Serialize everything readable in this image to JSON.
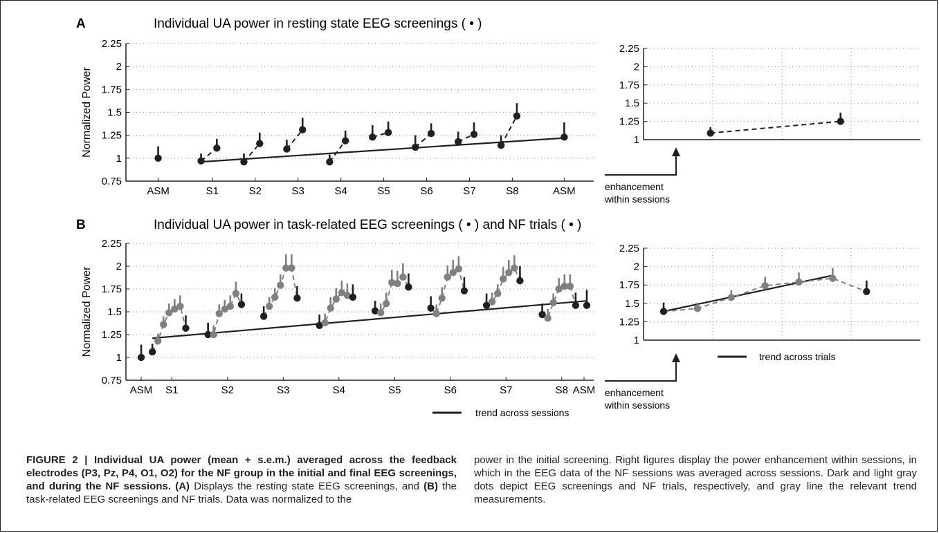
{
  "figure": {
    "panel_a_letter": "A",
    "panel_a_title": "Individual UA power in resting state EEG screenings ( • )",
    "panel_b_letter": "B",
    "panel_b_title": "Individual UA power in task-related EEG screenings ( • ) and NF trials ( • )",
    "arrow_note_line1": "enhancement",
    "arrow_note_line2": "within sessions",
    "legend_sessions": "trend across sessions",
    "legend_trials": "trend across trials"
  },
  "colors": {
    "dark": "#231f20",
    "light": "#808080",
    "grid": "#888888"
  },
  "chart_data": [
    {
      "id": "A-main",
      "type": "scatter",
      "title": "Individual UA power in resting state EEG screenings ( • )",
      "ylabel": "Normalized Power",
      "ylim": [
        0.75,
        2.25
      ],
      "yticks": [
        "0.75",
        "1",
        "1.25",
        "1.5",
        "1.75",
        "2",
        "2.25"
      ],
      "xlim": [
        0,
        20
      ],
      "xticks": [
        {
          "x": 1,
          "label": "ASM"
        },
        {
          "x": 3.4,
          "label": "S1"
        },
        {
          "x": 5.3,
          "label": "S2"
        },
        {
          "x": 7.2,
          "label": "S3"
        },
        {
          "x": 9.1,
          "label": "S4"
        },
        {
          "x": 11,
          "label": "S5"
        },
        {
          "x": 12.9,
          "label": "S6"
        },
        {
          "x": 14.8,
          "label": "S7"
        },
        {
          "x": 16.7,
          "label": "S8"
        },
        {
          "x": 19,
          "label": "ASM"
        }
      ],
      "grid": "horizontal dotted",
      "points": [
        {
          "x": 1,
          "y": 1.0,
          "err": 0.13,
          "group": "dark"
        },
        {
          "x": 2.9,
          "y": 0.97,
          "err": 0.08,
          "group": "dark"
        },
        {
          "x": 3.6,
          "y": 1.11,
          "err": 0.1,
          "group": "dark"
        },
        {
          "x": 4.8,
          "y": 0.96,
          "err": 0.09,
          "group": "dark"
        },
        {
          "x": 5.5,
          "y": 1.16,
          "err": 0.12,
          "group": "dark"
        },
        {
          "x": 6.7,
          "y": 1.1,
          "err": 0.1,
          "group": "dark"
        },
        {
          "x": 7.4,
          "y": 1.31,
          "err": 0.13,
          "group": "dark"
        },
        {
          "x": 8.6,
          "y": 0.96,
          "err": 0.08,
          "group": "dark"
        },
        {
          "x": 9.3,
          "y": 1.19,
          "err": 0.11,
          "group": "dark"
        },
        {
          "x": 10.5,
          "y": 1.23,
          "err": 0.13,
          "group": "dark"
        },
        {
          "x": 11.2,
          "y": 1.28,
          "err": 0.12,
          "group": "dark"
        },
        {
          "x": 12.4,
          "y": 1.12,
          "err": 0.13,
          "group": "dark"
        },
        {
          "x": 13.1,
          "y": 1.27,
          "err": 0.11,
          "group": "dark"
        },
        {
          "x": 14.3,
          "y": 1.18,
          "err": 0.11,
          "group": "dark"
        },
        {
          "x": 15.0,
          "y": 1.26,
          "err": 0.13,
          "group": "dark"
        },
        {
          "x": 16.2,
          "y": 1.14,
          "err": 0.11,
          "group": "dark"
        },
        {
          "x": 16.9,
          "y": 1.46,
          "err": 0.14,
          "group": "dark"
        },
        {
          "x": 19,
          "y": 1.23,
          "err": 0.16,
          "group": "dark"
        }
      ],
      "dashed_segments": [
        [
          1,
          2
        ],
        [
          3,
          4
        ],
        [
          5,
          6
        ],
        [
          7,
          8
        ],
        [
          9,
          10
        ],
        [
          11,
          12
        ],
        [
          13,
          14
        ],
        [
          15,
          16
        ]
      ],
      "trend": {
        "x": [
          2.9,
          19
        ],
        "y": [
          0.96,
          1.22
        ]
      }
    },
    {
      "id": "A-right",
      "type": "scatter",
      "ylim": [
        1,
        2.25
      ],
      "yticks": [
        "1",
        "1.25",
        "1.5",
        "1.75",
        "2",
        "2.25"
      ],
      "xlim": [
        0,
        10
      ],
      "grid": "horizontal and vertical dotted",
      "points": [
        {
          "x": 2.2,
          "y": 1.09,
          "err": 0.08,
          "group": "dark"
        },
        {
          "x": 7.2,
          "y": 1.25,
          "err": 0.12,
          "group": "dark"
        }
      ],
      "dashed_segments": [
        [
          0,
          1
        ]
      ]
    },
    {
      "id": "B-main",
      "type": "scatter",
      "title": "Individual UA power in task-related EEG screenings ( • ) and NF trials ( • )",
      "ylabel": "Normalized Power",
      "ylim": [
        0.75,
        2.25
      ],
      "yticks": [
        "0.75",
        "1",
        "1.25",
        "1.5",
        "1.75",
        "2",
        "2.25"
      ],
      "xlim": [
        0,
        81
      ],
      "xticks": [
        {
          "x": 1,
          "label": "ASM"
        },
        {
          "x": 6.5,
          "label": "S1"
        },
        {
          "x": 16.5,
          "label": "S2"
        },
        {
          "x": 26.5,
          "label": "S3"
        },
        {
          "x": 36.5,
          "label": "S4"
        },
        {
          "x": 46.5,
          "label": "S5"
        },
        {
          "x": 56.5,
          "label": "S6"
        },
        {
          "x": 66.5,
          "label": "S7"
        },
        {
          "x": 76.5,
          "label": "S8"
        },
        {
          "x": 80.5,
          "label": "ASM"
        }
      ],
      "grid": "horizontal dotted",
      "points": [
        {
          "x": 1,
          "y": 1.0,
          "err": 0.14,
          "group": "dark"
        },
        {
          "x": 3,
          "y": 1.06,
          "err": 0.09,
          "group": "dark"
        },
        {
          "x": 4,
          "y": 1.18,
          "err": 0.08,
          "group": "light"
        },
        {
          "x": 5,
          "y": 1.36,
          "err": 0.09,
          "group": "light"
        },
        {
          "x": 6,
          "y": 1.49,
          "err": 0.1,
          "group": "light"
        },
        {
          "x": 7,
          "y": 1.53,
          "err": 0.11,
          "group": "light"
        },
        {
          "x": 8,
          "y": 1.56,
          "err": 0.12,
          "group": "light"
        },
        {
          "x": 9,
          "y": 1.32,
          "err": 0.14,
          "group": "dark"
        },
        {
          "x": 13,
          "y": 1.25,
          "err": 0.13,
          "group": "dark"
        },
        {
          "x": 14,
          "y": 1.25,
          "err": 0.1,
          "group": "light"
        },
        {
          "x": 15,
          "y": 1.48,
          "err": 0.1,
          "group": "light"
        },
        {
          "x": 16,
          "y": 1.53,
          "err": 0.1,
          "group": "light"
        },
        {
          "x": 17,
          "y": 1.56,
          "err": 0.12,
          "group": "light"
        },
        {
          "x": 18,
          "y": 1.7,
          "err": 0.13,
          "group": "light"
        },
        {
          "x": 19,
          "y": 1.58,
          "err": 0.12,
          "group": "dark"
        },
        {
          "x": 23,
          "y": 1.45,
          "err": 0.11,
          "group": "dark"
        },
        {
          "x": 24,
          "y": 1.56,
          "err": 0.1,
          "group": "light"
        },
        {
          "x": 25,
          "y": 1.66,
          "err": 0.1,
          "group": "light"
        },
        {
          "x": 26,
          "y": 1.79,
          "err": 0.12,
          "group": "light"
        },
        {
          "x": 27,
          "y": 1.98,
          "err": 0.15,
          "group": "light"
        },
        {
          "x": 28,
          "y": 1.98,
          "err": 0.15,
          "group": "light"
        },
        {
          "x": 29,
          "y": 1.65,
          "err": 0.13,
          "group": "dark"
        },
        {
          "x": 33,
          "y": 1.35,
          "err": 0.12,
          "group": "dark"
        },
        {
          "x": 34,
          "y": 1.38,
          "err": 0.1,
          "group": "light"
        },
        {
          "x": 35,
          "y": 1.54,
          "err": 0.12,
          "group": "light"
        },
        {
          "x": 36,
          "y": 1.64,
          "err": 0.12,
          "group": "light"
        },
        {
          "x": 37,
          "y": 1.71,
          "err": 0.13,
          "group": "light"
        },
        {
          "x": 38,
          "y": 1.68,
          "err": 0.13,
          "group": "light"
        },
        {
          "x": 39,
          "y": 1.66,
          "err": 0.14,
          "group": "dark"
        },
        {
          "x": 43,
          "y": 1.51,
          "err": 0.11,
          "group": "dark"
        },
        {
          "x": 44,
          "y": 1.49,
          "err": 0.1,
          "group": "light"
        },
        {
          "x": 45,
          "y": 1.59,
          "err": 0.12,
          "group": "light"
        },
        {
          "x": 46,
          "y": 1.82,
          "err": 0.14,
          "group": "light"
        },
        {
          "x": 47,
          "y": 1.81,
          "err": 0.14,
          "group": "light"
        },
        {
          "x": 48,
          "y": 1.88,
          "err": 0.15,
          "group": "light"
        },
        {
          "x": 49,
          "y": 1.77,
          "err": 0.15,
          "group": "dark"
        },
        {
          "x": 53,
          "y": 1.54,
          "err": 0.13,
          "group": "dark"
        },
        {
          "x": 54,
          "y": 1.48,
          "err": 0.1,
          "group": "light"
        },
        {
          "x": 55,
          "y": 1.65,
          "err": 0.12,
          "group": "light"
        },
        {
          "x": 56,
          "y": 1.88,
          "err": 0.13,
          "group": "light"
        },
        {
          "x": 57,
          "y": 1.93,
          "err": 0.14,
          "group": "light"
        },
        {
          "x": 58,
          "y": 1.97,
          "err": 0.14,
          "group": "light"
        },
        {
          "x": 59,
          "y": 1.73,
          "err": 0.15,
          "group": "dark"
        },
        {
          "x": 63,
          "y": 1.57,
          "err": 0.13,
          "group": "dark"
        },
        {
          "x": 64,
          "y": 1.61,
          "err": 0.1,
          "group": "light"
        },
        {
          "x": 65,
          "y": 1.7,
          "err": 0.1,
          "group": "light"
        },
        {
          "x": 66,
          "y": 1.86,
          "err": 0.13,
          "group": "light"
        },
        {
          "x": 67,
          "y": 1.93,
          "err": 0.14,
          "group": "light"
        },
        {
          "x": 68,
          "y": 1.98,
          "err": 0.14,
          "group": "light"
        },
        {
          "x": 69,
          "y": 1.84,
          "err": 0.16,
          "group": "dark"
        },
        {
          "x": 73,
          "y": 1.47,
          "err": 0.12,
          "group": "dark"
        },
        {
          "x": 74,
          "y": 1.43,
          "err": 0.1,
          "group": "light"
        },
        {
          "x": 75,
          "y": 1.6,
          "err": 0.1,
          "group": "light"
        },
        {
          "x": 76,
          "y": 1.75,
          "err": 0.12,
          "group": "light"
        },
        {
          "x": 77,
          "y": 1.78,
          "err": 0.13,
          "group": "light"
        },
        {
          "x": 78,
          "y": 1.78,
          "err": 0.13,
          "group": "light"
        },
        {
          "x": 79,
          "y": 1.57,
          "err": 0.14,
          "group": "dark"
        },
        {
          "x": 81,
          "y": 1.57,
          "err": 0.17,
          "group": "dark"
        }
      ],
      "dashed_segments": [
        [
          1,
          2,
          3,
          4,
          5,
          6,
          7
        ],
        [
          8,
          9,
          10,
          11,
          12,
          13,
          14
        ],
        [
          15,
          16,
          17,
          18,
          19,
          20,
          21
        ],
        [
          22,
          23,
          24,
          25,
          26,
          27,
          28
        ],
        [
          29,
          30,
          31,
          32,
          33,
          34,
          35
        ],
        [
          36,
          37,
          38,
          39,
          40,
          41,
          42
        ],
        [
          43,
          44,
          45,
          46,
          47,
          48,
          49
        ],
        [
          50,
          51,
          52,
          53,
          54,
          55,
          56
        ]
      ],
      "trend": {
        "x": [
          3,
          81
        ],
        "y": [
          1.21,
          1.62
        ]
      }
    },
    {
      "id": "B-right",
      "type": "scatter",
      "ylim": [
        1,
        2.25
      ],
      "yticks": [
        "1",
        "1.25",
        "1.5",
        "1.75",
        "2",
        "2.25"
      ],
      "xlim": [
        0,
        10
      ],
      "grid": "horizontal and vertical dotted",
      "points": [
        {
          "x": 0.4,
          "y": 1.39,
          "err": 0.12,
          "group": "dark"
        },
        {
          "x": 1.7,
          "y": 1.43,
          "err": 0.08,
          "group": "light"
        },
        {
          "x": 3.0,
          "y": 1.58,
          "err": 0.1,
          "group": "light"
        },
        {
          "x": 4.3,
          "y": 1.74,
          "err": 0.12,
          "group": "light"
        },
        {
          "x": 5.6,
          "y": 1.79,
          "err": 0.13,
          "group": "light"
        },
        {
          "x": 6.9,
          "y": 1.84,
          "err": 0.14,
          "group": "light"
        },
        {
          "x": 8.2,
          "y": 1.66,
          "err": 0.15,
          "group": "dark"
        }
      ],
      "dashed_segments": [
        [
          0,
          1,
          2,
          3,
          4,
          5,
          6
        ]
      ],
      "trend": {
        "x": [
          0.4,
          6.9
        ],
        "y": [
          1.39,
          1.88
        ]
      }
    }
  ],
  "caption": {
    "label": "FIGURE 2 | Individual UA power (mean + s.e.m.) averaged across the feedback electrodes (P3, Pz, P4, O1, O2) for the NF group in the initial and final EEG screenings, and during the NF sessions.",
    "a_ref": "(A)",
    "a_text": " Displays the resting state EEG screenings, and ",
    "b_ref": "(B)",
    "b_text": " the task-related EEG screenings and NF trials. Data was normalized to the",
    "right_text": "power in the initial screening. Right figures display the power enhancement within sessions, in which in the EEG data of the NF sessions was averaged across sessions. Dark and light gray dots depict EEG screenings and NF trials, respectively, and gray line the relevant trend measurements."
  }
}
